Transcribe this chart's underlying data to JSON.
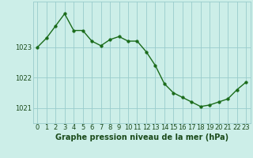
{
  "x": [
    0,
    1,
    2,
    3,
    4,
    5,
    6,
    7,
    8,
    9,
    10,
    11,
    12,
    13,
    14,
    15,
    16,
    17,
    18,
    19,
    20,
    21,
    22,
    23
  ],
  "y": [
    1023.0,
    1023.3,
    1023.7,
    1024.1,
    1023.55,
    1023.55,
    1023.2,
    1023.05,
    1023.25,
    1023.35,
    1023.2,
    1023.2,
    1022.85,
    1022.4,
    1021.8,
    1021.5,
    1021.35,
    1021.2,
    1021.05,
    1021.1,
    1021.2,
    1021.3,
    1021.6,
    1021.85
  ],
  "line_color": "#1a6b1a",
  "marker_color": "#1a6b1a",
  "bg_color": "#cceee8",
  "grid_color": "#99cccc",
  "label_color": "#1a4a1a",
  "xlabel": "Graphe pression niveau de la mer (hPa)",
  "ylim": [
    1020.5,
    1024.5
  ],
  "yticks": [
    1021,
    1022,
    1023
  ],
  "xticks": [
    0,
    1,
    2,
    3,
    4,
    5,
    6,
    7,
    8,
    9,
    10,
    11,
    12,
    13,
    14,
    15,
    16,
    17,
    18,
    19,
    20,
    21,
    22,
    23
  ],
  "xlabel_fontsize": 7.0,
  "tick_fontsize": 6.0,
  "line_width": 1.0,
  "marker_size": 2.5
}
